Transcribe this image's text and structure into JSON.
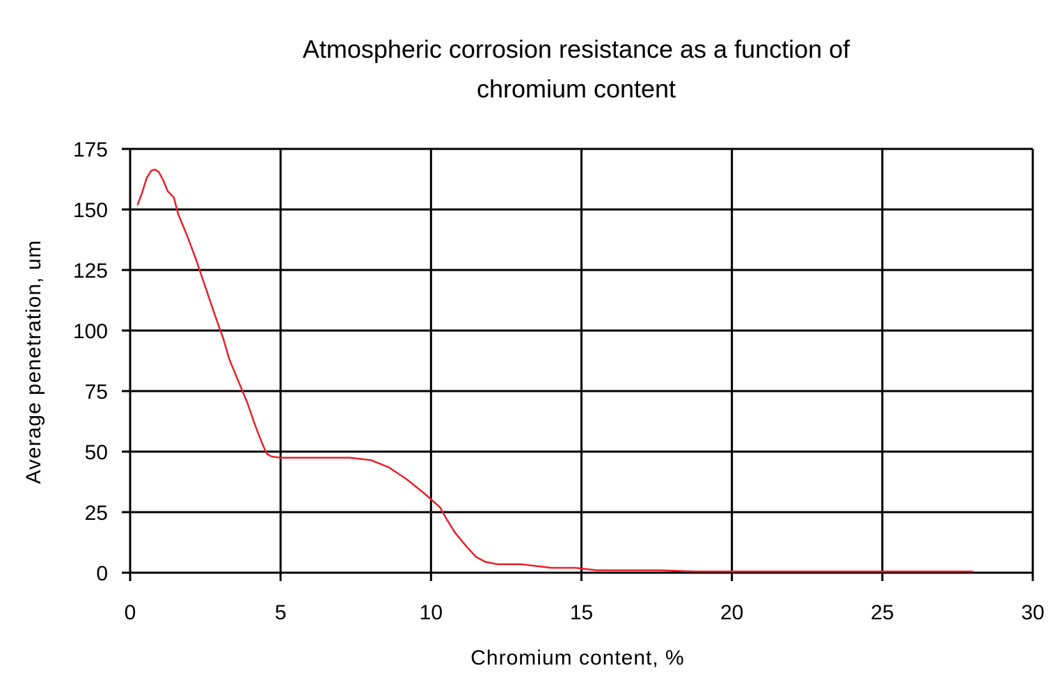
{
  "chart_data": {
    "type": "line",
    "title_lines": [
      "Atmospheric corrosion resistance as a function of",
      "chromium content"
    ],
    "xlabel": "Chromium content, %",
    "ylabel": "Average penetration, um",
    "xlim": [
      0,
      30
    ],
    "ylim": [
      0,
      175
    ],
    "xticks": [
      0,
      5,
      10,
      15,
      20,
      25,
      30
    ],
    "yticks": [
      0,
      25,
      50,
      75,
      100,
      125,
      150,
      175
    ],
    "grid": true,
    "series": [
      {
        "color": "#e8202a",
        "x": [
          0.25,
          0.4,
          0.55,
          0.7,
          0.82,
          0.95,
          1.1,
          1.25,
          1.45,
          1.6,
          1.9,
          2.2,
          2.5,
          2.8,
          3.1,
          3.3,
          3.6,
          3.9,
          4.15,
          4.4,
          4.55,
          4.7,
          5.0,
          5.5,
          6.5,
          7.3,
          8.0,
          8.6,
          9.2,
          9.8,
          10.3,
          10.5,
          10.8,
          11.2,
          11.5,
          11.8,
          12.2,
          13.0,
          14.0,
          14.8,
          15.5,
          16.5,
          17.6,
          18.8,
          20.0,
          22.0,
          24.0,
          26.0,
          28.0
        ],
        "y": [
          152,
          157,
          163,
          166,
          166.5,
          165.5,
          162,
          157.5,
          155,
          148,
          139,
          129,
          118,
          107,
          96.5,
          88,
          79,
          70,
          61,
          53,
          49,
          48,
          47.5,
          47.5,
          47.5,
          47.5,
          46.5,
          43.5,
          38.5,
          32.5,
          27,
          22.5,
          16.5,
          10.5,
          6.5,
          4.5,
          3.5,
          3.5,
          2,
          2,
          1,
          1,
          1,
          0.5,
          0.5,
          0.5,
          0.5,
          0.5,
          0.5
        ]
      }
    ]
  }
}
